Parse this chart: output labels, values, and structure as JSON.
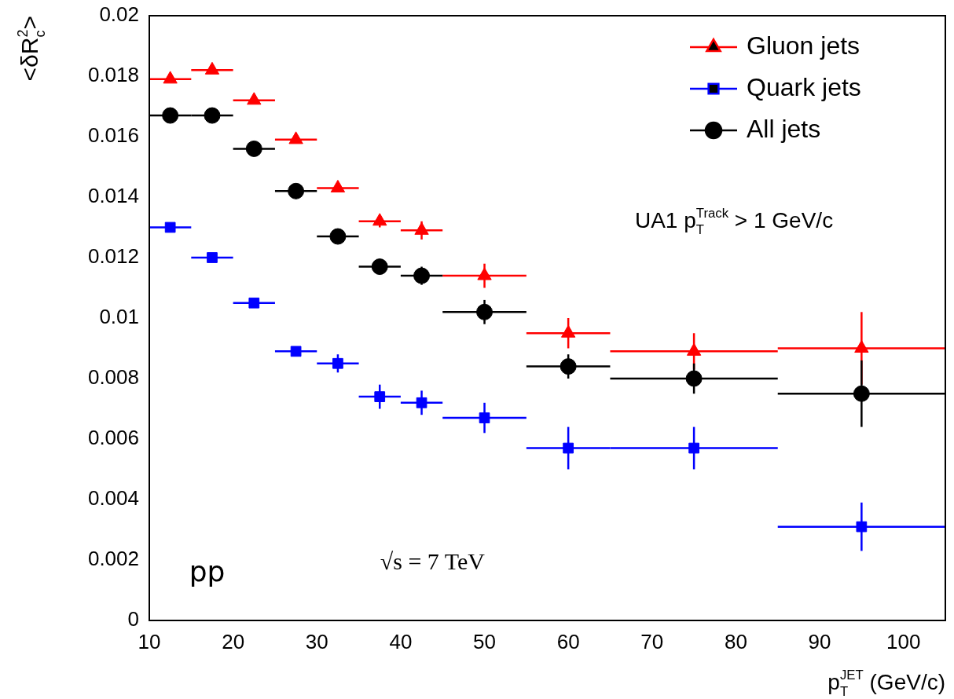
{
  "chart_data": {
    "type": "scatter",
    "xlabel": "p$_{T}$$^{JET}$ (GeV/c)",
    "ylabel": "<δR$_{c}$$^{2}$>",
    "xlim": [
      10,
      105
    ],
    "xticks": [
      10,
      20,
      30,
      40,
      50,
      60,
      70,
      80,
      90,
      100
    ],
    "ylim": [
      0,
      0.02
    ],
    "yticks": [
      0,
      0.002,
      0.004,
      0.006,
      0.008,
      0.01,
      0.012,
      0.014,
      0.016,
      0.018,
      0.02
    ],
    "x": [
      12.5,
      17.5,
      22.5,
      27.5,
      32.5,
      37.5,
      42.5,
      50,
      60,
      75,
      95
    ],
    "series": [
      {
        "name": "Gluon jets",
        "color": "#ff0000",
        "marker": "triangle",
        "xerrors": [
          2.5,
          2.5,
          2.5,
          2.5,
          2.5,
          2.5,
          2.5,
          5,
          5,
          10,
          10
        ],
        "values": [
          0.0179,
          0.0182,
          0.0172,
          0.0159,
          0.0143,
          0.0132,
          0.0129,
          0.0114,
          0.0095,
          0.0089,
          0.009
        ],
        "errors": [
          0.0001,
          0.0001,
          0.0001,
          0.0001,
          0.0001,
          0.0002,
          0.0003,
          0.0004,
          0.0005,
          0.0006,
          0.0012
        ]
      },
      {
        "name": "Quark jets",
        "color": "#0000ff",
        "marker": "square",
        "xerrors": [
          2.5,
          2.5,
          2.5,
          2.5,
          2.5,
          2.5,
          2.5,
          5,
          5,
          10,
          10
        ],
        "values": [
          0.013,
          0.012,
          0.0105,
          0.0089,
          0.0085,
          0.0074,
          0.0072,
          0.0067,
          0.0057,
          0.0057,
          0.0031
        ],
        "errors": [
          0.0001,
          0.0001,
          0.0001,
          0.0001,
          0.0003,
          0.0004,
          0.0004,
          0.0005,
          0.0007,
          0.0007,
          0.0008
        ]
      },
      {
        "name": "All jets",
        "color": "#000000",
        "marker": "circle",
        "xerrors": [
          2.5,
          2.5,
          2.5,
          2.5,
          2.5,
          2.5,
          2.5,
          5,
          5,
          10,
          10
        ],
        "values": [
          0.0167,
          0.0167,
          0.0156,
          0.0142,
          0.0127,
          0.0117,
          0.0114,
          0.0102,
          0.0084,
          0.008,
          0.0075
        ],
        "errors": [
          0.0001,
          0.0001,
          0.0001,
          0.0001,
          0.0001,
          0.0001,
          0.0003,
          0.0004,
          0.0004,
          0.0005,
          0.0011
        ]
      }
    ],
    "legend": "top right",
    "annotations": [
      "UA1 p$_{T}$$^{Track}$ > 1 GeV/c",
      "pp",
      "√s = 7 TeV"
    ]
  }
}
